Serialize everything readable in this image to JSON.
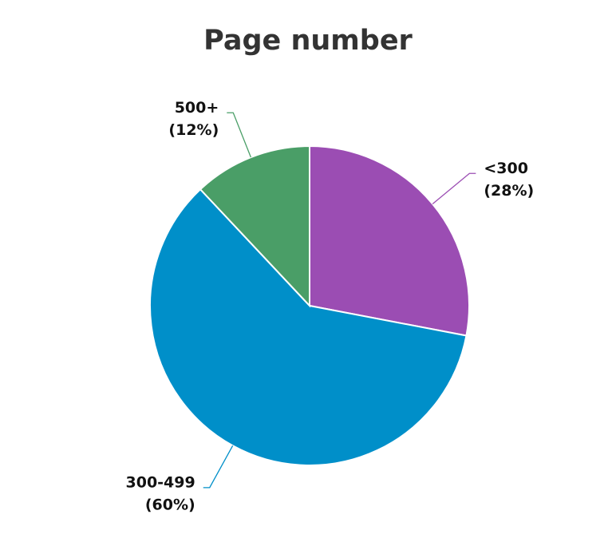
{
  "chart_data": {
    "type": "pie",
    "title": "Page number",
    "categories": [
      "<300",
      "300-499",
      "500+"
    ],
    "values": [
      28,
      60,
      12
    ],
    "value_labels": [
      "(28%)",
      "(60%)",
      "(12%)"
    ],
    "colors": [
      "#9b4db3",
      "#008fc9",
      "#4a9e67"
    ]
  }
}
